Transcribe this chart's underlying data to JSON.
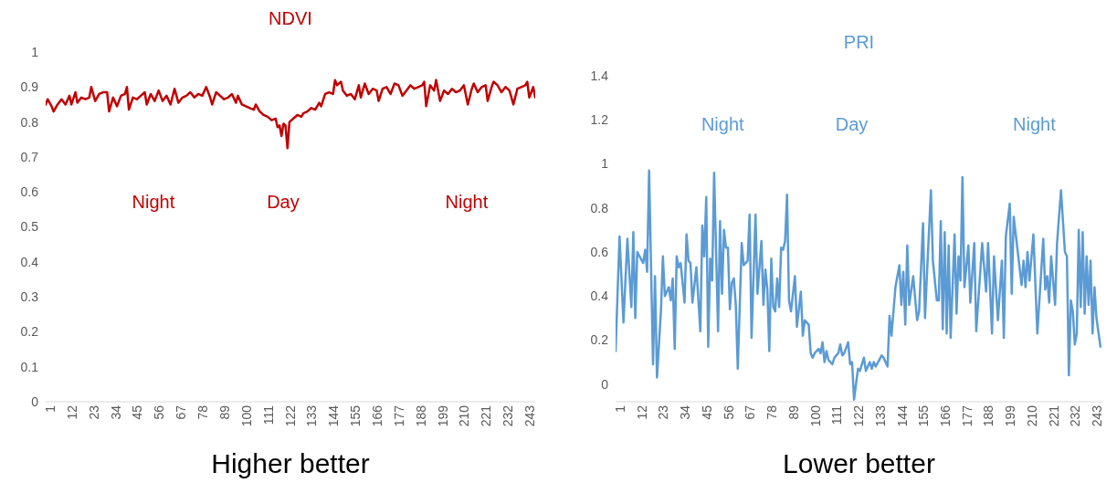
{
  "chart_data": [
    {
      "type": "line",
      "title": "NDVI",
      "xlabel": "Higher better",
      "xlim": [
        1,
        248
      ],
      "xticks": [
        1,
        12,
        23,
        34,
        45,
        56,
        67,
        78,
        89,
        100,
        111,
        122,
        133,
        144,
        155,
        166,
        177,
        188,
        199,
        210,
        221,
        232,
        243
      ],
      "ylim": [
        0,
        1
      ],
      "yticks": [
        0,
        0.1,
        0.2,
        0.3,
        0.4,
        0.5,
        0.6,
        0.7,
        0.8,
        0.9,
        1
      ],
      "grid": false,
      "legend": false,
      "series": [
        {
          "color": "#c00000",
          "x": [
            1,
            2,
            4,
            5,
            7,
            9,
            11,
            13,
            14,
            16,
            17,
            19,
            21,
            23,
            24,
            26,
            28,
            30,
            32,
            33,
            35,
            37,
            39,
            41,
            42,
            43,
            45,
            47,
            49,
            51,
            52,
            54,
            56,
            58,
            60,
            62,
            64,
            66,
            68,
            70,
            72,
            74,
            76,
            78,
            80,
            82,
            84,
            85,
            87,
            89,
            91,
            93,
            95,
            97,
            98,
            100,
            102,
            104,
            106,
            107,
            109,
            111,
            113,
            115,
            117,
            118,
            119,
            120,
            121,
            122,
            123,
            124,
            126,
            128,
            130,
            131,
            133,
            135,
            137,
            139,
            140,
            142,
            144,
            146,
            147,
            148,
            150,
            151,
            153,
            155,
            157,
            159,
            160,
            162,
            164,
            166,
            168,
            169,
            171,
            173,
            175,
            177,
            179,
            181,
            183,
            185,
            187,
            189,
            191,
            192,
            193,
            195,
            197,
            198,
            200,
            202,
            204,
            206,
            208,
            210,
            212,
            214,
            216,
            217,
            219,
            221,
            223,
            224,
            226,
            227,
            229,
            231,
            233,
            235,
            237,
            239,
            241,
            243,
            244,
            245,
            247,
            248
          ],
          "values": [
            0.85,
            0.865,
            0.845,
            0.83,
            0.85,
            0.865,
            0.85,
            0.875,
            0.85,
            0.885,
            0.855,
            0.87,
            0.865,
            0.87,
            0.9,
            0.86,
            0.88,
            0.885,
            0.885,
            0.83,
            0.87,
            0.845,
            0.875,
            0.88,
            0.9,
            0.835,
            0.87,
            0.865,
            0.875,
            0.885,
            0.85,
            0.88,
            0.86,
            0.89,
            0.86,
            0.875,
            0.85,
            0.895,
            0.855,
            0.87,
            0.875,
            0.885,
            0.87,
            0.88,
            0.875,
            0.9,
            0.87,
            0.85,
            0.885,
            0.875,
            0.865,
            0.87,
            0.88,
            0.855,
            0.875,
            0.85,
            0.845,
            0.84,
            0.835,
            0.85,
            0.83,
            0.82,
            0.815,
            0.805,
            0.81,
            0.785,
            0.79,
            0.76,
            0.795,
            0.79,
            0.725,
            0.8,
            0.81,
            0.82,
            0.815,
            0.825,
            0.83,
            0.84,
            0.835,
            0.855,
            0.845,
            0.88,
            0.885,
            0.88,
            0.92,
            0.905,
            0.915,
            0.89,
            0.875,
            0.88,
            0.865,
            0.905,
            0.87,
            0.91,
            0.88,
            0.895,
            0.89,
            0.86,
            0.895,
            0.9,
            0.88,
            0.91,
            0.905,
            0.875,
            0.89,
            0.905,
            0.895,
            0.9,
            0.905,
            0.915,
            0.845,
            0.905,
            0.89,
            0.92,
            0.86,
            0.89,
            0.88,
            0.895,
            0.885,
            0.89,
            0.905,
            0.85,
            0.895,
            0.91,
            0.885,
            0.9,
            0.905,
            0.86,
            0.9,
            0.915,
            0.905,
            0.885,
            0.9,
            0.89,
            0.85,
            0.895,
            0.9,
            0.905,
            0.915,
            0.87,
            0.9,
            0.87
          ]
        }
      ],
      "annotations": [
        "Night",
        "Day",
        "Night"
      ]
    },
    {
      "type": "line",
      "title": "PRI",
      "xlabel": "Lower better",
      "xlim": [
        1,
        248
      ],
      "xticks": [
        1,
        12,
        23,
        34,
        45,
        56,
        67,
        78,
        89,
        100,
        111,
        122,
        133,
        144,
        155,
        166,
        177,
        188,
        199,
        210,
        221,
        232,
        243
      ],
      "ylim": [
        -0.08,
        1.4
      ],
      "yticks": [
        0,
        0.2,
        0.4,
        0.6,
        0.8,
        1,
        1.2,
        1.4
      ],
      "grid": false,
      "legend": false,
      "series": [
        {
          "color": "#5b9bd5",
          "x": [
            1,
            3,
            5,
            7,
            9,
            10,
            11,
            12,
            15,
            16,
            17,
            18,
            20,
            21,
            22,
            24,
            25,
            26,
            28,
            29,
            30,
            31,
            32,
            33,
            34,
            36,
            37,
            38,
            39,
            40,
            42,
            44,
            45,
            46,
            47,
            48,
            49,
            50,
            51,
            53,
            54,
            55,
            56,
            57,
            58,
            59,
            60,
            61,
            62,
            63,
            65,
            66,
            68,
            69,
            70,
            72,
            73,
            75,
            76,
            77,
            78,
            79,
            80,
            81,
            82,
            83,
            84,
            85,
            86,
            87,
            88,
            89,
            90,
            92,
            93,
            95,
            96,
            97,
            99,
            100,
            101,
            102,
            104,
            105,
            106,
            107,
            108,
            109,
            111,
            112,
            114,
            115,
            116,
            117,
            119,
            120,
            121,
            122,
            123,
            124,
            125,
            127,
            128,
            130,
            131,
            132,
            133,
            136,
            137,
            139,
            140,
            141,
            143,
            145,
            146,
            147,
            148,
            149,
            150,
            152,
            154,
            155,
            157,
            158,
            159,
            161,
            162,
            164,
            165,
            166,
            167,
            168,
            169,
            170,
            171,
            173,
            174,
            175,
            176,
            177,
            178,
            180,
            181,
            183,
            184,
            187,
            189,
            190,
            192,
            193,
            195,
            197,
            198,
            199,
            201,
            202,
            203,
            207,
            208,
            209,
            210,
            211,
            213,
            215,
            218,
            219,
            220,
            221,
            222,
            224,
            225,
            227,
            229,
            230,
            231,
            232,
            233,
            234,
            235,
            236,
            237,
            238,
            239,
            240,
            241,
            242,
            243,
            244,
            245,
            247
          ],
          "values": [
            0.15,
            0.67,
            0.28,
            0.66,
            0.35,
            0.69,
            0.3,
            0.6,
            0.55,
            0.61,
            0.51,
            0.97,
            0.09,
            0.49,
            0.03,
            0.33,
            0.58,
            0.4,
            0.44,
            0.38,
            0.48,
            0.16,
            0.58,
            0.53,
            0.55,
            0.37,
            0.68,
            0.56,
            0.55,
            0.37,
            0.53,
            0.24,
            0.72,
            0.58,
            0.85,
            0.17,
            0.57,
            0.47,
            0.96,
            0.24,
            0.74,
            0.41,
            0.7,
            0.62,
            0.62,
            0.34,
            0.46,
            0.48,
            0.36,
            0.07,
            0.64,
            0.54,
            0.56,
            0.77,
            0.21,
            0.77,
            0.41,
            0.65,
            0.36,
            0.52,
            0.43,
            0.15,
            0.57,
            0.35,
            0.33,
            0.48,
            0.35,
            0.62,
            0.61,
            0.65,
            0.86,
            0.38,
            0.33,
            0.49,
            0.26,
            0.42,
            0.22,
            0.29,
            0.27,
            0.14,
            0.12,
            0.14,
            0.16,
            0.14,
            0.19,
            0.1,
            0.15,
            0.11,
            0.09,
            0.12,
            0.14,
            0.18,
            0.13,
            0.14,
            0.19,
            0.09,
            0.1,
            -0.07,
            0,
            0.07,
            0.06,
            0.12,
            0.06,
            0.1,
            0.07,
            0.1,
            0.08,
            0.13,
            0.12,
            0.08,
            0.31,
            0.22,
            0.44,
            0.54,
            0.36,
            0.51,
            0.27,
            0.63,
            0.36,
            0.49,
            0.29,
            0.33,
            0.73,
            0.3,
            0.5,
            0.88,
            0.56,
            0.38,
            0.38,
            0.74,
            0.25,
            0.69,
            0.23,
            0.63,
            0.21,
            0.68,
            0.32,
            0.58,
            0.47,
            0.94,
            0.44,
            0.63,
            0.37,
            0.64,
            0.24,
            0.64,
            0.42,
            0.64,
            0.23,
            0.58,
            0.29,
            0.56,
            0.21,
            0.67,
            0.82,
            0.41,
            0.76,
            0.45,
            0.56,
            0.44,
            0.6,
            0.47,
            0.68,
            0.23,
            0.66,
            0.43,
            0.49,
            0.37,
            0.58,
            0.36,
            0.64,
            0.88,
            0.6,
            0.58,
            0.04,
            0.38,
            0.33,
            0.18,
            0.23,
            0.7,
            0.35,
            0.69,
            0.32,
            0.58,
            0.36,
            0.56,
            0.23,
            0.44,
            0.3,
            0.17
          ]
        }
      ],
      "annotations": [
        "Night",
        "Day",
        "Night"
      ]
    }
  ]
}
